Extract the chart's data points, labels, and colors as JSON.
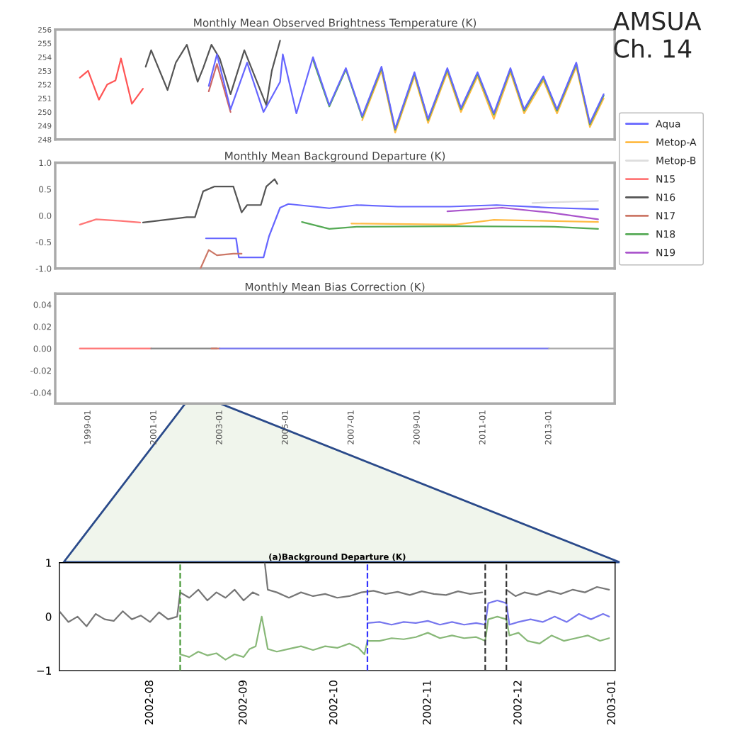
{
  "chart_data": [
    {
      "type": "line",
      "title": "Monthly Mean Observed Brightness Temperature (K)",
      "annotations": [
        "AMSUA\nCh. 14"
      ],
      "xlim": [
        "1998-01",
        "2015-01"
      ],
      "xticks": [
        "1999-01",
        "2001-01",
        "2003-01",
        "2005-01",
        "2007-01",
        "2009-01",
        "2011-01",
        "2013-01"
      ],
      "ylim": [
        248,
        256
      ],
      "yticks": [
        248,
        249,
        250,
        251,
        252,
        253,
        254,
        255,
        256
      ],
      "tick_labels": "y",
      "series": [
        {
          "color": "#ff5555",
          "x": [
            "1998-10",
            "1999-01",
            "1999-05",
            "1999-08",
            "1999-11",
            "2000-01",
            "2000-05",
            "2000-09"
          ],
          "values": [
            252.5,
            253.0,
            250.9,
            252.0,
            252.3,
            253.9,
            250.6,
            251.7
          ]
        },
        {
          "color": "#555555",
          "x": [
            "2000-10",
            "2000-12",
            "2001-06",
            "2001-09",
            "2002-01",
            "2002-05",
            "2002-07",
            "2002-10",
            "2003-01",
            "2003-05",
            "2003-10",
            "2004-06",
            "2004-08",
            "2004-11"
          ],
          "values": [
            253.3,
            254.5,
            251.6,
            253.6,
            254.9,
            252.2,
            253.2,
            254.9,
            253.9,
            251.3,
            254.5,
            250.5,
            253.0,
            255.2
          ]
        },
        {
          "color": "#cc6666",
          "x": [
            "2002-09",
            "2002-12",
            "2003-05"
          ],
          "values": [
            251.5,
            253.5,
            250.0
          ]
        },
        {
          "color": "#ffbb44",
          "x": [
            "2007-05",
            "2007-12",
            "2008-05",
            "2008-12",
            "2009-05",
            "2009-12",
            "2010-05",
            "2010-11",
            "2011-05",
            "2011-11",
            "2012-04",
            "2012-11",
            "2013-04",
            "2013-11",
            "2014-04",
            "2014-09"
          ],
          "values": [
            249.4,
            253.0,
            248.5,
            252.6,
            249.2,
            252.9,
            250.0,
            252.6,
            249.5,
            252.9,
            249.9,
            252.3,
            249.9,
            253.3,
            248.9,
            251.0
          ]
        },
        {
          "color": "#55aa55",
          "x": [
            "2005-11",
            "2006-05",
            "2006-11",
            "2007-05",
            "2007-12",
            "2008-05",
            "2008-12",
            "2009-05",
            "2009-12",
            "2010-05",
            "2010-11",
            "2011-05",
            "2011-11",
            "2012-04",
            "2012-11",
            "2013-04",
            "2013-11",
            "2014-04",
            "2014-09"
          ],
          "values": [
            253.8,
            250.4,
            253.1,
            249.6,
            253.2,
            248.7,
            252.8,
            249.4,
            253.1,
            250.2,
            252.8,
            249.8,
            253.1,
            250.1,
            252.5,
            250.1,
            253.5,
            249.1,
            251.2
          ]
        },
        {
          "color": "#6666ff",
          "x": [
            "2002-09",
            "2002-12",
            "2003-05",
            "2003-11",
            "2004-05",
            "2004-11",
            "2004-12",
            "2005-05",
            "2005-11",
            "2006-05",
            "2006-11",
            "2007-05",
            "2007-12",
            "2008-05",
            "2008-12",
            "2009-05",
            "2009-12",
            "2010-05",
            "2010-11",
            "2011-05",
            "2011-11",
            "2012-04",
            "2012-11",
            "2013-04",
            "2013-11",
            "2014-04",
            "2014-09"
          ],
          "values": [
            251.9,
            254.2,
            250.2,
            253.6,
            250.0,
            252.2,
            254.2,
            249.9,
            254.0,
            250.5,
            253.2,
            249.7,
            253.3,
            248.8,
            252.9,
            249.5,
            253.2,
            250.3,
            252.9,
            249.9,
            253.2,
            250.2,
            252.6,
            250.2,
            253.6,
            249.2,
            251.3
          ]
        }
      ]
    },
    {
      "type": "line",
      "title": "Monthly Mean Background Departure (K)",
      "legend": "right",
      "xlim": [
        "1998-01",
        "2015-01"
      ],
      "xticks": [
        "1999-01",
        "2001-01",
        "2003-01",
        "2005-01",
        "2007-01",
        "2009-01",
        "2011-01",
        "2013-01"
      ],
      "ylim": [
        -1,
        1
      ],
      "yticks": [
        {
          "value": -1,
          "label": "-1.0"
        },
        {
          "value": -0.5,
          "label": "-0.5"
        },
        {
          "value": 0,
          "label": "0.0"
        },
        {
          "value": 0.5,
          "label": "0.5"
        },
        {
          "value": 1,
          "label": "1.0"
        }
      ],
      "tick_labels": "y",
      "series": [
        {
          "name": "Aqua",
          "color": "#6666ff",
          "x": [
            "2002-08",
            "2003-07",
            "2003-08",
            "2004-05",
            "2004-07",
            "2004-11",
            "2005-02",
            "2006-05",
            "2007-03",
            "2008-06",
            "2010-01",
            "2011-06",
            "2013-01",
            "2014-07"
          ],
          "values": [
            -0.43,
            -0.43,
            -0.79,
            -0.79,
            -0.39,
            0.15,
            0.22,
            0.14,
            0.2,
            0.17,
            0.17,
            0.2,
            0.15,
            0.12
          ]
        },
        {
          "name": "Metop-A",
          "color": "#ffbb44",
          "x": [
            "2007-01",
            "2010-03",
            "2011-05",
            "2014-07"
          ],
          "values": [
            -0.15,
            -0.17,
            -0.08,
            -0.12
          ]
        },
        {
          "name": "Metop-B",
          "color": "#dddddd",
          "x": [
            "2012-07",
            "2014-07"
          ],
          "values": [
            0.24,
            0.28
          ]
        },
        {
          "name": "N15",
          "color": "#ff7777",
          "x": [
            "1998-10",
            "1999-04",
            "2000-01",
            "2000-08"
          ],
          "values": [
            -0.17,
            -0.07,
            -0.1,
            -0.13
          ]
        },
        {
          "name": "N16",
          "color": "#555555",
          "x": [
            "2000-09",
            "2002-01",
            "2002-04",
            "2002-07",
            "2002-11",
            "2003-06",
            "2003-09",
            "2003-11",
            "2004-04",
            "2004-06",
            "2004-09",
            "2004-10"
          ],
          "values": [
            -0.13,
            -0.03,
            -0.03,
            0.46,
            0.55,
            0.55,
            0.06,
            0.2,
            0.2,
            0.55,
            0.69,
            0.6
          ]
        },
        {
          "name": "N17",
          "color": "#cc7766",
          "x": [
            "2002-06",
            "2002-09",
            "2002-12",
            "2003-06",
            "2003-09"
          ],
          "values": [
            -1.0,
            -0.65,
            -0.75,
            -0.72,
            -0.72
          ]
        },
        {
          "name": "N18",
          "color": "#55aa55",
          "x": [
            "2005-07",
            "2006-05",
            "2007-03",
            "2010-03",
            "2013-03",
            "2014-07"
          ],
          "values": [
            -0.12,
            -0.25,
            -0.21,
            -0.2,
            -0.21,
            -0.25
          ]
        },
        {
          "name": "N19",
          "color": "#aa55cc",
          "x": [
            "2009-12",
            "2011-08",
            "2013-01",
            "2014-07"
          ],
          "values": [
            0.08,
            0.15,
            0.06,
            -0.07
          ]
        }
      ]
    },
    {
      "type": "line",
      "title": "Monthly Mean Bias Correction (K)",
      "xlim": [
        "1998-01",
        "2015-01"
      ],
      "xticks": [
        "1999-01",
        "2001-01",
        "2003-01",
        "2005-01",
        "2007-01",
        "2009-01",
        "2011-01",
        "2013-01"
      ],
      "ylim": [
        -0.05,
        0.05
      ],
      "yticks": [
        -0.04,
        -0.02,
        {
          "value": 0,
          "label": "0.00"
        },
        0.02,
        0.04
      ],
      "series": [
        {
          "color": "#ff7777",
          "x": [
            "1998-10",
            "2000-12"
          ],
          "values": [
            0,
            0
          ]
        },
        {
          "color": "#888888",
          "x": [
            "2000-12",
            "2002-12"
          ],
          "values": [
            0,
            0
          ]
        },
        {
          "color": "#cc7766",
          "x": [
            "2002-10",
            "2003-01"
          ],
          "values": [
            0,
            0
          ]
        },
        {
          "color": "#7777ee",
          "x": [
            "2003-01",
            "2013-01"
          ],
          "values": [
            0,
            0
          ]
        },
        {
          "color": "#aaaaaa",
          "x": [
            "2013-01",
            "2015-01"
          ],
          "values": [
            0,
            0
          ]
        }
      ]
    },
    {
      "type": "line",
      "title": "(a)Background Departure (K)",
      "xlim": [
        "2002-07-02",
        "2003-01-02"
      ],
      "xticks": [
        "2002-08",
        "2002-09",
        "2002-10",
        "2002-11",
        "2002-12",
        "2003-01"
      ],
      "ylim": [
        -1,
        1
      ],
      "yticks": [
        {
          "value": -1,
          "label": "−1"
        },
        0,
        1
      ],
      "ref_lines": [
        {
          "axis": "x",
          "value": "2002-08-11",
          "color": "#4a9a3a",
          "line_style": "dashed"
        },
        {
          "axis": "x",
          "value": "2002-10-12",
          "color": "#3333ff",
          "line_style": "dashed"
        },
        {
          "axis": "x",
          "value": "2002-11-20",
          "color": "#333333",
          "line_style": "dashed"
        },
        {
          "axis": "x",
          "value": "2002-11-27",
          "color": "#333333",
          "line_style": "dashed"
        }
      ],
      "series": [
        {
          "color": "#777777",
          "x": [
            "2002-07-02",
            "2002-07-05",
            "2002-07-08",
            "2002-07-11",
            "2002-07-14",
            "2002-07-17",
            "2002-07-20",
            "2002-07-23",
            "2002-07-26",
            "2002-07-29",
            "2002-08-01",
            "2002-08-04",
            "2002-08-07",
            "2002-08-10",
            "2002-08-11",
            "2002-08-14",
            "2002-08-17",
            "2002-08-20",
            "2002-08-23",
            "2002-08-26",
            "2002-08-29",
            "2002-09-01",
            "2002-09-04",
            "2002-09-06",
            "2002-09-07",
            "2002-09-08",
            "2002-09-09",
            "2002-09-12",
            "2002-09-16",
            "2002-09-20",
            "2002-09-24",
            "2002-09-28",
            "2002-10-02",
            "2002-10-06",
            "2002-10-10",
            "2002-10-14",
            "2002-10-18",
            "2002-10-22",
            "2002-10-26",
            "2002-10-30",
            "2002-11-03",
            "2002-11-07",
            "2002-11-11",
            "2002-11-15",
            "2002-11-19",
            "2002-11-23",
            "2002-11-27",
            "2002-11-30",
            "2002-12-03",
            "2002-12-07",
            "2002-12-11",
            "2002-12-15",
            "2002-12-19",
            "2002-12-23",
            "2002-12-27",
            "2002-12-31"
          ],
          "values": [
            0.1,
            -0.1,
            0.0,
            -0.18,
            0.05,
            -0.05,
            -0.08,
            0.1,
            -0.05,
            0.02,
            -0.1,
            0.08,
            -0.05,
            0.0,
            0.45,
            0.35,
            0.5,
            0.3,
            0.45,
            0.35,
            0.5,
            0.3,
            0.45,
            0.4,
            null,
            1.0,
            0.5,
            0.45,
            0.35,
            0.45,
            0.38,
            0.42,
            0.35,
            0.38,
            0.45,
            0.48,
            0.42,
            0.46,
            0.4,
            0.47,
            0.42,
            0.4,
            0.47,
            0.42,
            0.45,
            null,
            0.5,
            0.38,
            0.45,
            0.4,
            0.48,
            0.42,
            0.5,
            0.45,
            0.55,
            0.5
          ]
        },
        {
          "color": "#88b878",
          "x": [
            "2002-08-11",
            "2002-08-14",
            "2002-08-17",
            "2002-08-20",
            "2002-08-23",
            "2002-08-26",
            "2002-08-29",
            "2002-09-01",
            "2002-09-03",
            "2002-09-05",
            "2002-09-07",
            "2002-09-09",
            "2002-09-12",
            "2002-09-16",
            "2002-09-20",
            "2002-09-24",
            "2002-09-28",
            "2002-10-02",
            "2002-10-06",
            "2002-10-09",
            "2002-10-11",
            "2002-10-12",
            "2002-10-16",
            "2002-10-20",
            "2002-10-24",
            "2002-10-28",
            "2002-11-01",
            "2002-11-05",
            "2002-11-09",
            "2002-11-13",
            "2002-11-17",
            "2002-11-20",
            "2002-11-21",
            "2002-11-24",
            "2002-11-27",
            "2002-11-28",
            "2002-12-01",
            "2002-12-04",
            "2002-12-08",
            "2002-12-12",
            "2002-12-16",
            "2002-12-20",
            "2002-12-24",
            "2002-12-28",
            "2002-12-31"
          ],
          "values": [
            -0.7,
            -0.75,
            -0.65,
            -0.72,
            -0.68,
            -0.8,
            -0.7,
            -0.75,
            -0.6,
            -0.55,
            0.0,
            -0.6,
            -0.65,
            -0.6,
            -0.55,
            -0.62,
            -0.55,
            -0.58,
            -0.5,
            -0.58,
            -0.7,
            -0.45,
            -0.45,
            -0.4,
            -0.42,
            -0.38,
            -0.3,
            -0.4,
            -0.35,
            -0.4,
            -0.38,
            -0.45,
            -0.05,
            0.0,
            -0.05,
            -0.35,
            -0.3,
            -0.45,
            -0.5,
            -0.35,
            -0.45,
            -0.4,
            -0.35,
            -0.45,
            -0.4
          ]
        },
        {
          "color": "#7777ee",
          "x": [
            "2002-10-12",
            "2002-10-16",
            "2002-10-20",
            "2002-10-24",
            "2002-10-28",
            "2002-11-01",
            "2002-11-05",
            "2002-11-09",
            "2002-11-13",
            "2002-11-17",
            "2002-11-20",
            "2002-11-21",
            "2002-11-24",
            "2002-11-27",
            "2002-11-28",
            "2002-12-01",
            "2002-12-05",
            "2002-12-09",
            "2002-12-13",
            "2002-12-17",
            "2002-12-21",
            "2002-12-25",
            "2002-12-29",
            "2002-12-31"
          ],
          "values": [
            -0.12,
            -0.1,
            -0.15,
            -0.1,
            -0.12,
            -0.08,
            -0.15,
            -0.1,
            -0.15,
            -0.12,
            -0.15,
            0.25,
            0.3,
            0.25,
            -0.15,
            -0.1,
            -0.05,
            -0.1,
            0.0,
            -0.1,
            0.05,
            -0.05,
            0.05,
            0.0
          ]
        }
      ]
    }
  ]
}
